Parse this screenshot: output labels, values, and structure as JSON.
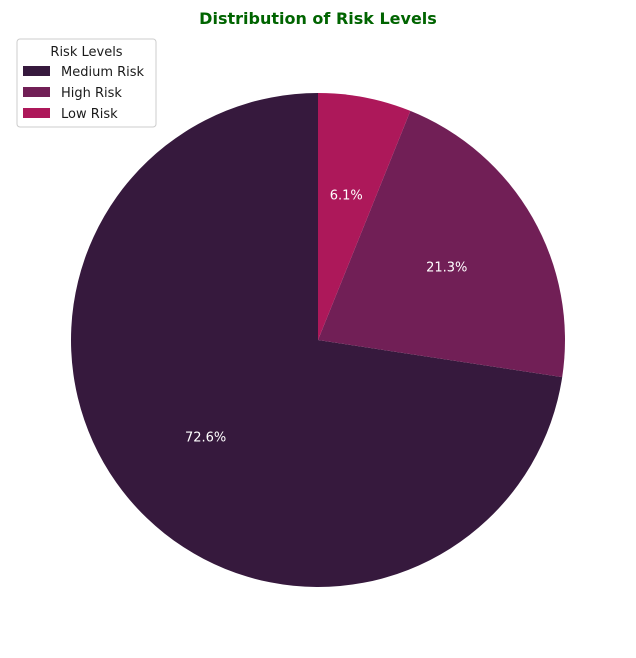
{
  "chart_data": {
    "type": "pie",
    "title": "Distribution of Risk Levels",
    "title_color": "#006400",
    "legend": {
      "title": "Risk Levels",
      "placement": "top-left"
    },
    "start_angle_deg": 90,
    "direction": "counterclockwise",
    "slices": [
      {
        "label": "Medium Risk",
        "value": 72.6,
        "pct_label": "72.6%",
        "color": "#36193d"
      },
      {
        "label": "High Risk",
        "value": 21.3,
        "pct_label": "21.3%",
        "color": "#711f56"
      },
      {
        "label": "Low Risk",
        "value": 6.1,
        "pct_label": "6.1%",
        "color": "#ad185a"
      }
    ]
  }
}
